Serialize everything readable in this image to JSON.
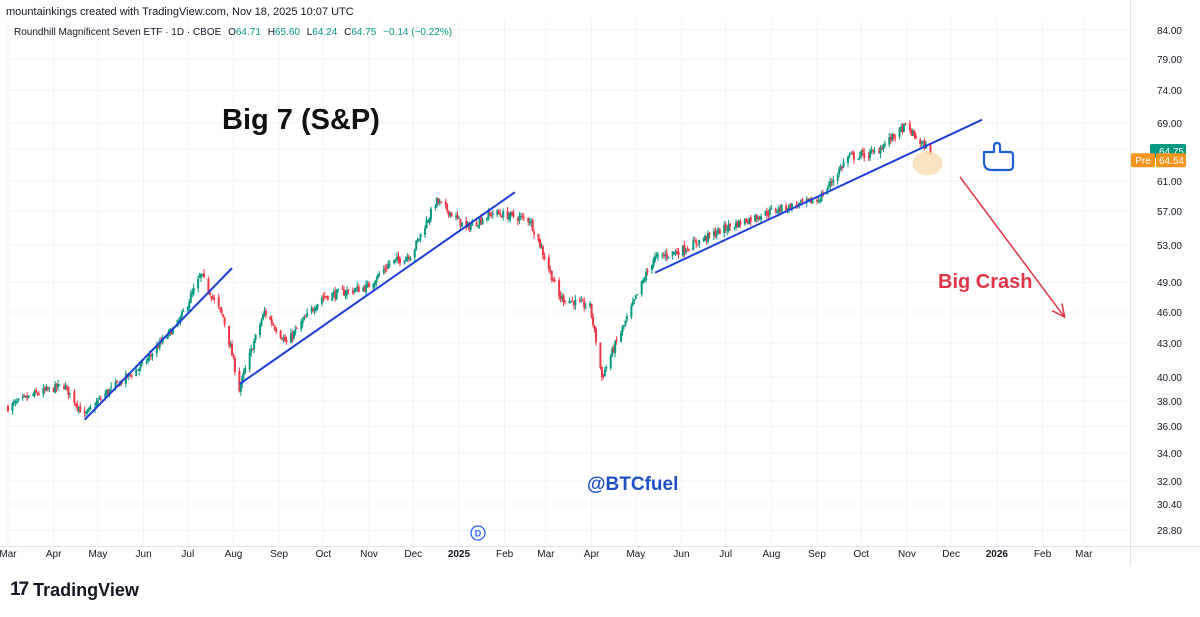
{
  "header": {
    "credit": "mountainkings created with TradingView.com, Nov 18, 2025 10:07 UTC",
    "symbol": "Roundhill Magnificent Seven ETF · 1D · CBOE",
    "open_label": "O",
    "open": "64.71",
    "high_label": "H",
    "high": "65.60",
    "low_label": "L",
    "low": "64.24",
    "close_label": "C",
    "close": "64.75",
    "change": "−0.14 (−0.22%)"
  },
  "brand": {
    "name": "TradingView",
    "mark": "17"
  },
  "chart_data": {
    "type": "candlestick",
    "ylim": [
      28.0,
      85.0
    ],
    "yticks": [
      "84.00",
      "79.00",
      "74.00",
      "69.00",
      "65.00",
      "61.00",
      "57.00",
      "53.00",
      "49.00",
      "46.00",
      "43.00",
      "40.00",
      "38.00",
      "36.00",
      "34.00",
      "32.00",
      "30.40",
      "28.80"
    ],
    "ytick_values": [
      84,
      79,
      74,
      69,
      65,
      61,
      57,
      53,
      49,
      46,
      43,
      40,
      38,
      36,
      34,
      32,
      30.4,
      28.8
    ],
    "x_start": "2024-03-01",
    "x_end": "2026-03-31",
    "xticks": [
      {
        "label": "Mar",
        "date": "2024-03-01",
        "bold": false
      },
      {
        "label": "Apr",
        "date": "2024-04-01",
        "bold": false
      },
      {
        "label": "May",
        "date": "2024-05-01",
        "bold": false
      },
      {
        "label": "Jun",
        "date": "2024-06-01",
        "bold": false
      },
      {
        "label": "Jul",
        "date": "2024-07-01",
        "bold": false
      },
      {
        "label": "Aug",
        "date": "2024-08-01",
        "bold": false
      },
      {
        "label": "Sep",
        "date": "2024-09-01",
        "bold": false
      },
      {
        "label": "Oct",
        "date": "2024-10-01",
        "bold": false
      },
      {
        "label": "Nov",
        "date": "2024-11-01",
        "bold": false
      },
      {
        "label": "Dec",
        "date": "2024-12-01",
        "bold": false
      },
      {
        "label": "2025",
        "date": "2025-01-01",
        "bold": true
      },
      {
        "label": "Feb",
        "date": "2025-02-01",
        "bold": false
      },
      {
        "label": "Mar",
        "date": "2025-03-01",
        "bold": false
      },
      {
        "label": "Apr",
        "date": "2025-04-01",
        "bold": false
      },
      {
        "label": "May",
        "date": "2025-05-01",
        "bold": false
      },
      {
        "label": "Jun",
        "date": "2025-06-01",
        "bold": false
      },
      {
        "label": "Jul",
        "date": "2025-07-01",
        "bold": false
      },
      {
        "label": "Aug",
        "date": "2025-08-01",
        "bold": false
      },
      {
        "label": "Sep",
        "date": "2025-09-01",
        "bold": false
      },
      {
        "label": "Oct",
        "date": "2025-10-01",
        "bold": false
      },
      {
        "label": "Nov",
        "date": "2025-11-01",
        "bold": false
      },
      {
        "label": "Dec",
        "date": "2025-12-01",
        "bold": false
      },
      {
        "label": "2026",
        "date": "2026-01-01",
        "bold": true
      },
      {
        "label": "Feb",
        "date": "2026-02-01",
        "bold": false
      },
      {
        "label": "Mar",
        "date": "2026-03-01",
        "bold": false
      }
    ],
    "series": [
      {
        "price_path": [
          {
            "date": "2024-03-01",
            "close": 37.5
          },
          {
            "date": "2024-03-20",
            "close": 38.6
          },
          {
            "date": "2024-04-08",
            "close": 39.3
          },
          {
            "date": "2024-04-22",
            "close": 36.8
          },
          {
            "date": "2024-05-06",
            "close": 38.6
          },
          {
            "date": "2024-05-31",
            "close": 41.0
          },
          {
            "date": "2024-06-25",
            "close": 45.0
          },
          {
            "date": "2024-07-10",
            "close": 49.7
          },
          {
            "date": "2024-07-25",
            "close": 45.5
          },
          {
            "date": "2024-08-05",
            "close": 39.0
          },
          {
            "date": "2024-08-22",
            "close": 46.0
          },
          {
            "date": "2024-09-06",
            "close": 43.0
          },
          {
            "date": "2024-09-30",
            "close": 47.5
          },
          {
            "date": "2024-10-31",
            "close": 48.5
          },
          {
            "date": "2024-11-15",
            "close": 51.0
          },
          {
            "date": "2024-11-30",
            "close": 52.0
          },
          {
            "date": "2024-12-17",
            "close": 58.3
          },
          {
            "date": "2025-01-06",
            "close": 55.0
          },
          {
            "date": "2025-01-24",
            "close": 56.8
          },
          {
            "date": "2025-02-18",
            "close": 56.0
          },
          {
            "date": "2025-03-10",
            "close": 47.5
          },
          {
            "date": "2025-03-31",
            "close": 46.5
          },
          {
            "date": "2025-04-08",
            "close": 40.0
          },
          {
            "date": "2025-04-24",
            "close": 45.0
          },
          {
            "date": "2025-05-13",
            "close": 51.5
          },
          {
            "date": "2025-06-02",
            "close": 52.5
          },
          {
            "date": "2025-07-01",
            "close": 55.0
          },
          {
            "date": "2025-08-01",
            "close": 57.0
          },
          {
            "date": "2025-09-02",
            "close": 58.5
          },
          {
            "date": "2025-09-22",
            "close": 64.0
          },
          {
            "date": "2025-10-10",
            "close": 64.5
          },
          {
            "date": "2025-10-31",
            "close": 68.5
          },
          {
            "date": "2025-11-10",
            "close": 66.0
          },
          {
            "date": "2025-11-17",
            "close": 64.75
          }
        ]
      }
    ],
    "trendlines": [
      {
        "from": {
          "date": "2024-04-22",
          "price": 36.5
        },
        "to": {
          "date": "2024-07-31",
          "price": 50.5
        },
        "color": "#1e3fd6"
      },
      {
        "from": {
          "date": "2024-08-05",
          "price": 39.4
        },
        "to": {
          "date": "2025-02-08",
          "price": 59.5
        },
        "color": "#1e3fd6"
      },
      {
        "from": {
          "date": "2025-05-14",
          "price": 50.0
        },
        "to": {
          "date": "2025-12-22",
          "price": 69.5
        },
        "color": "#1e3fd6"
      }
    ],
    "crash_arrow": {
      "from": {
        "date": "2025-12-07",
        "price": 61.5
      },
      "to": {
        "date": "2026-02-16",
        "price": 45.5
      },
      "color": "#e03545"
    },
    "highlight": {
      "date": "2025-11-15",
      "price": 63.2,
      "color": "#f6d9a8"
    },
    "price_tags": [
      {
        "text": "64.75",
        "price": 64.75,
        "color": "#089981"
      },
      {
        "prefix": "Pre",
        "text": "64.54",
        "price": 63.6,
        "color": "#f7941d"
      }
    ],
    "annotations": {
      "title": "Big 7 (S&P)",
      "crash": "Big Crash",
      "handle": "@BTCfuel",
      "event_marker": "D"
    },
    "hand_icon": "pointing-hand-icon",
    "colors": {
      "up": "#089981",
      "down": "#f23645",
      "axis_text": "#131722",
      "grid": "#f0f3fa"
    }
  }
}
